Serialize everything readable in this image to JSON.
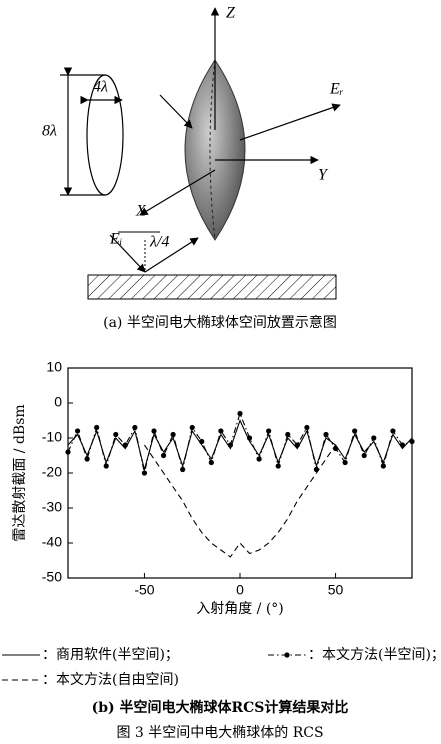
{
  "diagram": {
    "z_label": "Z",
    "y_label": "Y",
    "x_label": "X",
    "scattered_label": "Eᵣ",
    "incident_label": "Eᵢ",
    "height_label": "8λ",
    "width_label": "4λ",
    "offset_label": "λ/4",
    "caption": "(a) 半空间电大椭球体空间放置示意图"
  },
  "chart_data": {
    "type": "line",
    "xlabel": "入射角度 / (°)",
    "ylabel": "雷达散射截面 / dBsm",
    "xlim": [
      -90,
      90
    ],
    "xticks": [
      -50,
      0,
      50
    ],
    "ylim": [
      -50,
      10
    ],
    "yticks": [
      -50,
      -40,
      -30,
      -20,
      -10,
      0,
      10
    ],
    "series": [
      {
        "name": "：商用软件(半空间)；",
        "color": "#000000",
        "line_style": "solid",
        "x": [
          -90,
          -85,
          -80,
          -75,
          -70,
          -65,
          -60,
          -55,
          -50,
          -45,
          -40,
          -35,
          -30,
          -25,
          -20,
          -15,
          -10,
          -5,
          0,
          5,
          10,
          15,
          20,
          25,
          30,
          35,
          40,
          45,
          50,
          55,
          60,
          65,
          70,
          75,
          80,
          85,
          90
        ],
        "values": [
          -12,
          -9,
          -15,
          -8,
          -17,
          -10,
          -13,
          -8,
          -19,
          -9,
          -14,
          -10,
          -18,
          -8,
          -12,
          -16,
          -9,
          -13,
          -5,
          -11,
          -15,
          -9,
          -17,
          -10,
          -13,
          -8,
          -18,
          -10,
          -12,
          -16,
          -9,
          -14,
          -11,
          -17,
          -9,
          -13,
          -10
        ]
      },
      {
        "name": "：本文方法(半空间)；",
        "color": "#000000",
        "line_style": "dashdot",
        "marker": "circle",
        "x": [
          -90,
          -85,
          -80,
          -75,
          -70,
          -65,
          -60,
          -55,
          -50,
          -45,
          -40,
          -35,
          -30,
          -25,
          -20,
          -15,
          -10,
          -5,
          0,
          5,
          10,
          15,
          20,
          25,
          30,
          35,
          40,
          45,
          50,
          55,
          60,
          65,
          70,
          75,
          80,
          85,
          90
        ],
        "values": [
          -14,
          -8,
          -16,
          -7,
          -18,
          -9,
          -12,
          -7,
          -20,
          -8,
          -15,
          -9,
          -19,
          -7,
          -11,
          -17,
          -8,
          -12,
          -3,
          -10,
          -16,
          -8,
          -18,
          -9,
          -12,
          -7,
          -19,
          -9,
          -13,
          -17,
          -8,
          -15,
          -10,
          -18,
          -8,
          -12,
          -11
        ]
      },
      {
        "name": "：本文方法(自由空间)",
        "color": "#000000",
        "line_style": "dashed",
        "x": [
          -50,
          -45,
          -40,
          -35,
          -30,
          -25,
          -20,
          -15,
          -10,
          -5,
          0,
          5,
          10,
          15,
          20,
          25,
          30,
          35,
          40,
          45,
          50
        ],
        "values": [
          -12,
          -16,
          -20,
          -24,
          -28,
          -33,
          -37,
          -40,
          -42,
          -44,
          -40,
          -43,
          -42,
          -40,
          -37,
          -33,
          -28,
          -24,
          -20,
          -16,
          -12
        ]
      }
    ],
    "caption": "(b) 半空间电大椭球体RCS计算结果对比"
  },
  "figure_caption": "图 3   半空间中电大椭球体的 RCS"
}
